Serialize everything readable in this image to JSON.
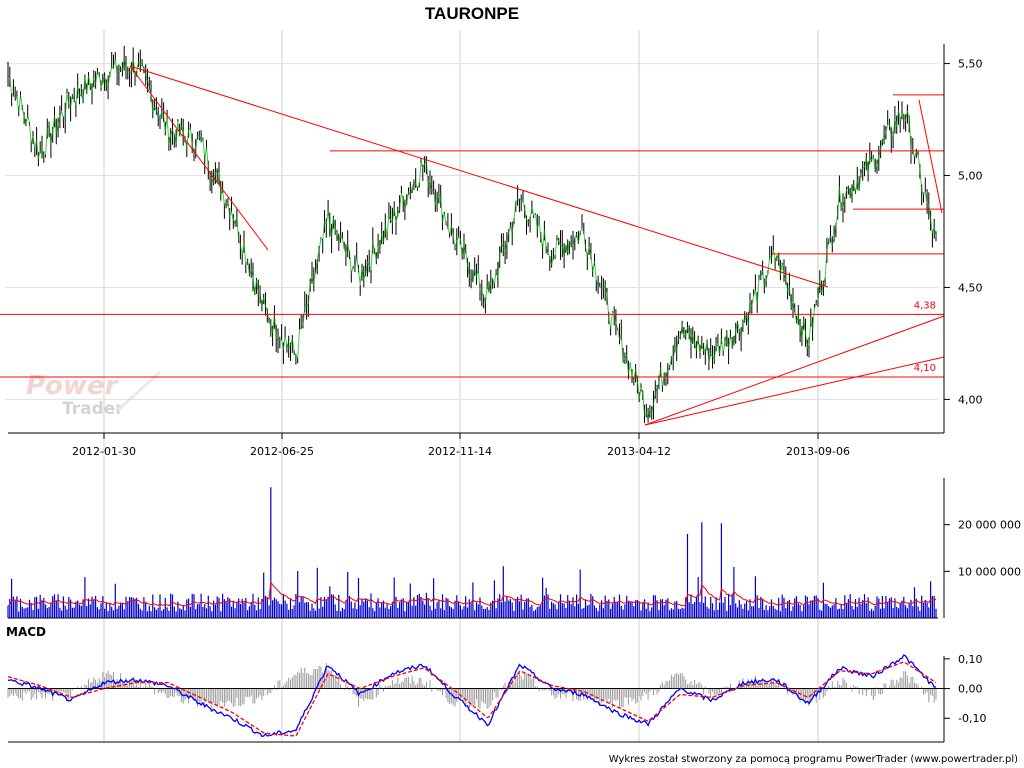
{
  "chart_data": [
    {
      "type": "line",
      "panel": "price",
      "title": "TAURONPE",
      "ylim": [
        3.85,
        5.65
      ],
      "yticks": [
        "5,50",
        "5,00",
        "4,50",
        "4,00"
      ],
      "ytick_values": [
        5.5,
        5.0,
        4.5,
        4.0
      ],
      "xticks": [
        "2012-01-30",
        "2012-06-25",
        "2012-11-14",
        "2013-04-12",
        "2013-09-06"
      ],
      "grid": true,
      "series": [
        {
          "color": "#000000",
          "x": [
            "2011-09",
            "2011-10",
            "2011-11",
            "2011-12",
            "2012-01-30",
            "2012-02",
            "2012-03",
            "2012-04",
            "2012-05",
            "2012-06-01",
            "2012-06-25",
            "2012-07",
            "2012-08",
            "2012-09",
            "2012-10",
            "2012-11-14",
            "2012-12",
            "2013-01",
            "2013-02",
            "2013-03",
            "2013-04-12",
            "2013-05",
            "2013-06",
            "2013-07",
            "2013-08",
            "2013-09-06",
            "2013-10",
            "2013-11",
            "2013-12",
            "2013-12-end"
          ],
          "values": [
            5.45,
            5.1,
            5.35,
            5.45,
            5.5,
            5.2,
            5.15,
            4.85,
            4.4,
            4.2,
            4.8,
            4.55,
            4.8,
            5.05,
            4.7,
            4.45,
            4.9,
            4.65,
            4.75,
            4.3,
            3.95,
            4.3,
            4.2,
            4.35,
            4.65,
            4.25,
            4.9,
            5.05,
            5.3,
            4.7
          ]
        }
      ],
      "horizontal_lines": [
        {
          "value": 4.38,
          "label": "4,38"
        },
        {
          "value": 4.1,
          "label": "4,10"
        },
        {
          "value": 5.11,
          "label": ""
        },
        {
          "value": 5.36,
          "label": ""
        },
        {
          "value": 4.85,
          "label": ""
        },
        {
          "value": 4.65,
          "label": ""
        }
      ],
      "line_color": "#ff0000",
      "watermark_logo": {
        "line1": "Power",
        "line2": "Trader"
      }
    },
    {
      "type": "bar",
      "panel": "volume",
      "yticks": [
        "20 000 000",
        "10 000 000"
      ],
      "ytick_values": [
        20000000,
        10000000
      ],
      "ylim": [
        0,
        30000000
      ],
      "bar_color": "#0000cc",
      "avg_color": "#ff0000",
      "spikes": [
        {
          "x": "2012-06-25",
          "value": 28000000
        },
        {
          "x": "2013-04-30",
          "value": 18000000
        },
        {
          "x": "2013-05-10",
          "value": 20500000
        },
        {
          "x": "2013-05-20",
          "value": 20300000
        }
      ],
      "typical_value": 3500000
    },
    {
      "type": "line",
      "panel": "macd",
      "title": "MACD",
      "ylim": [
        -0.18,
        0.15
      ],
      "yticks": [
        "0,10",
        "0,00",
        "-0,10"
      ],
      "ytick_values": [
        0.1,
        0.0,
        -0.1
      ],
      "series": [
        {
          "color": "#0000ff",
          "values": [
            0.03,
            0.0,
            -0.04,
            0.02,
            0.03,
            0.01,
            -0.05,
            -0.1,
            -0.16,
            -0.14,
            0.08,
            -0.02,
            0.05,
            0.08,
            -0.03,
            -0.12,
            0.08,
            0.0,
            -0.02,
            -0.08,
            -0.12,
            0.0,
            -0.04,
            0.02,
            0.03,
            -0.05,
            0.07,
            0.04,
            0.11,
            0.0
          ]
        },
        {
          "color": "#ff0000",
          "values": [
            0.04,
            0.01,
            -0.03,
            0.0,
            0.02,
            0.02,
            -0.03,
            -0.08,
            -0.15,
            -0.16,
            0.05,
            0.0,
            0.04,
            0.07,
            -0.01,
            -0.1,
            0.06,
            0.01,
            -0.01,
            -0.06,
            -0.11,
            -0.02,
            -0.03,
            0.01,
            0.02,
            -0.03,
            0.06,
            0.05,
            0.09,
            0.02
          ]
        }
      ],
      "histogram_color": "#999999"
    }
  ],
  "footer": {
    "credit": "Wykres został stworzony za pomocą programu PowerTrader (www.powertrader.pl)"
  }
}
